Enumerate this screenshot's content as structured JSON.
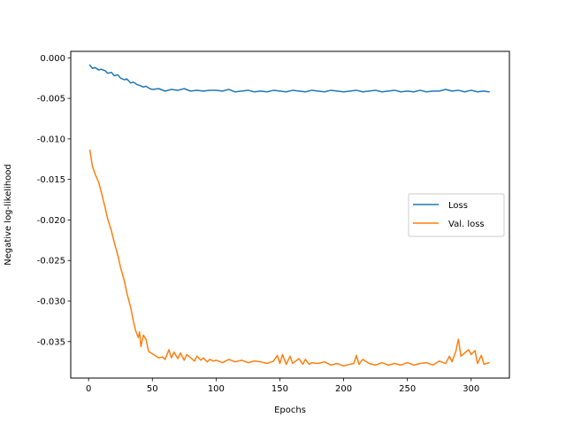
{
  "chart_data": {
    "type": "line",
    "title": "",
    "xlabel": "Epochs",
    "ylabel": "Negative log-likelihood",
    "xlim": [
      -14,
      330
    ],
    "ylim": [
      -0.0395,
      0.0008
    ],
    "xticks": [
      0,
      50,
      100,
      150,
      200,
      250,
      300
    ],
    "xtick_labels": [
      "0",
      "50",
      "100",
      "150",
      "200",
      "250",
      "300"
    ],
    "yticks": [
      0.0,
      -0.005,
      -0.01,
      -0.015,
      -0.02,
      -0.025,
      -0.03,
      -0.035
    ],
    "ytick_labels": [
      "0.000",
      "-0.005",
      "-0.010",
      "-0.015",
      "-0.020",
      "-0.025",
      "-0.030",
      "-0.035"
    ],
    "grid": false,
    "legend_position": "center-right",
    "series": [
      {
        "name": "Loss",
        "color": "#1f77b4",
        "x": [
          1,
          3,
          5,
          8,
          10,
          13,
          15,
          18,
          20,
          23,
          25,
          28,
          30,
          33,
          35,
          38,
          40,
          43,
          45,
          48,
          50,
          55,
          60,
          65,
          70,
          75,
          80,
          85,
          90,
          95,
          100,
          105,
          110,
          115,
          120,
          125,
          130,
          135,
          140,
          145,
          150,
          155,
          160,
          165,
          170,
          175,
          180,
          185,
          190,
          195,
          200,
          205,
          210,
          215,
          220,
          225,
          230,
          235,
          240,
          245,
          250,
          255,
          260,
          265,
          270,
          275,
          280,
          285,
          290,
          295,
          300,
          305,
          310,
          314
        ],
        "y": [
          -0.0009,
          -0.0013,
          -0.0012,
          -0.0015,
          -0.0014,
          -0.0016,
          -0.0019,
          -0.0018,
          -0.0022,
          -0.0021,
          -0.0025,
          -0.0027,
          -0.0026,
          -0.0031,
          -0.003,
          -0.0033,
          -0.0034,
          -0.0036,
          -0.0035,
          -0.0038,
          -0.0039,
          -0.0038,
          -0.0041,
          -0.0039,
          -0.004,
          -0.0038,
          -0.0041,
          -0.004,
          -0.0041,
          -0.004,
          -0.004,
          -0.0041,
          -0.0039,
          -0.0042,
          -0.0041,
          -0.004,
          -0.0042,
          -0.0041,
          -0.0042,
          -0.004,
          -0.0041,
          -0.0042,
          -0.004,
          -0.0041,
          -0.0042,
          -0.004,
          -0.0041,
          -0.0042,
          -0.004,
          -0.0041,
          -0.0042,
          -0.0041,
          -0.004,
          -0.0042,
          -0.0041,
          -0.004,
          -0.0042,
          -0.0041,
          -0.004,
          -0.0042,
          -0.0041,
          -0.0042,
          -0.004,
          -0.0042,
          -0.0041,
          -0.0041,
          -0.0039,
          -0.0041,
          -0.004,
          -0.0042,
          -0.004,
          -0.0042,
          -0.0041,
          -0.0042
        ]
      },
      {
        "name": "Val. loss",
        "color": "#ff7f0e",
        "x": [
          1,
          3,
          5,
          8,
          10,
          13,
          15,
          18,
          20,
          23,
          25,
          28,
          30,
          33,
          35,
          37,
          39,
          40,
          41,
          43,
          45,
          47,
          49,
          52,
          55,
          58,
          60,
          63,
          65,
          67,
          70,
          72,
          75,
          77,
          80,
          83,
          85,
          88,
          90,
          93,
          95,
          98,
          100,
          105,
          110,
          115,
          120,
          125,
          130,
          135,
          140,
          145,
          148,
          150,
          152,
          155,
          158,
          160,
          165,
          168,
          170,
          173,
          175,
          180,
          185,
          190,
          195,
          200,
          205,
          208,
          210,
          212,
          215,
          220,
          225,
          230,
          235,
          240,
          245,
          250,
          255,
          260,
          265,
          270,
          275,
          280,
          283,
          285,
          288,
          290,
          292,
          295,
          298,
          300,
          303,
          305,
          308,
          310,
          314
        ],
        "y": [
          -0.0114,
          -0.0134,
          -0.0143,
          -0.0154,
          -0.0166,
          -0.0185,
          -0.0199,
          -0.0214,
          -0.0227,
          -0.0244,
          -0.0258,
          -0.0275,
          -0.029,
          -0.0308,
          -0.0324,
          -0.0337,
          -0.0345,
          -0.0338,
          -0.0356,
          -0.0342,
          -0.0347,
          -0.0362,
          -0.0364,
          -0.0367,
          -0.037,
          -0.0369,
          -0.0372,
          -0.036,
          -0.037,
          -0.0363,
          -0.0371,
          -0.0364,
          -0.0373,
          -0.0366,
          -0.037,
          -0.0374,
          -0.0368,
          -0.0373,
          -0.037,
          -0.0375,
          -0.0372,
          -0.0374,
          -0.0373,
          -0.0376,
          -0.0372,
          -0.0375,
          -0.0373,
          -0.0376,
          -0.0374,
          -0.0375,
          -0.0377,
          -0.0374,
          -0.0367,
          -0.0377,
          -0.0366,
          -0.0378,
          -0.0368,
          -0.0377,
          -0.0371,
          -0.0378,
          -0.0372,
          -0.0378,
          -0.0376,
          -0.0377,
          -0.0375,
          -0.0379,
          -0.0377,
          -0.038,
          -0.0378,
          -0.0377,
          -0.0367,
          -0.0378,
          -0.0372,
          -0.0377,
          -0.0379,
          -0.0376,
          -0.0379,
          -0.0377,
          -0.0379,
          -0.0376,
          -0.0379,
          -0.0377,
          -0.0376,
          -0.0379,
          -0.0374,
          -0.0377,
          -0.0368,
          -0.0375,
          -0.0362,
          -0.0347,
          -0.0368,
          -0.0364,
          -0.036,
          -0.0366,
          -0.0361,
          -0.0377,
          -0.0367,
          -0.0378,
          -0.0376
        ]
      }
    ]
  }
}
